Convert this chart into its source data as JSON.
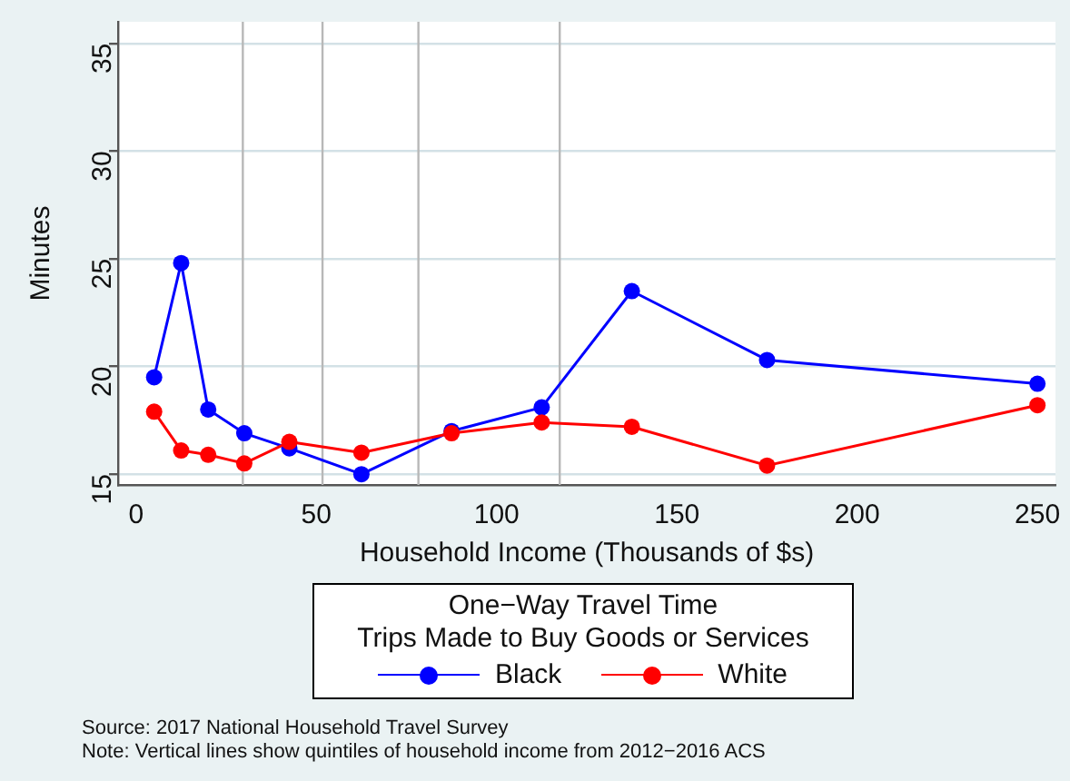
{
  "chart_data": {
    "type": "line",
    "xlabel": "Household Income (Thousands of $s)",
    "ylabel": "Minutes",
    "legend_title": "One−Way Travel Time\nTrips Made to Buy Goods or Services",
    "legend": "bottom",
    "marker": "circle",
    "grid": "y",
    "xlim": [
      -5,
      255
    ],
    "xticks": [
      0,
      50,
      100,
      150,
      200,
      250
    ],
    "ylim": [
      14.5,
      36
    ],
    "yticks": [
      15,
      20,
      25,
      30,
      35
    ],
    "x": [
      5,
      12.5,
      20,
      30,
      42.5,
      62.5,
      87.5,
      112.5,
      137.5,
      175,
      250
    ],
    "series": [
      {
        "name": "Black",
        "color": "#0000ff",
        "values": [
          19.5,
          24.8,
          18.0,
          16.9,
          16.2,
          15.0,
          17.0,
          18.1,
          23.5,
          20.3,
          19.2
        ]
      },
      {
        "name": "White",
        "color": "#ff0000",
        "values": [
          17.9,
          16.1,
          15.9,
          15.5,
          16.5,
          16.0,
          16.9,
          17.4,
          17.2,
          15.4,
          18.2
        ]
      }
    ],
    "ref_lines": [
      {
        "axis": "x",
        "value": 29.6,
        "color": "#b8b8b8"
      },
      {
        "axis": "x",
        "value": 51.7,
        "color": "#b8b8b8"
      },
      {
        "axis": "x",
        "value": 78.3,
        "color": "#b8b8b8"
      },
      {
        "axis": "x",
        "value": 117.5,
        "color": "#b8b8b8"
      }
    ],
    "annotations": [
      "Source:  2017 National Household Travel Survey",
      "Note:  Vertical lines show quintiles of household income from 2012−2016 ACS"
    ]
  }
}
